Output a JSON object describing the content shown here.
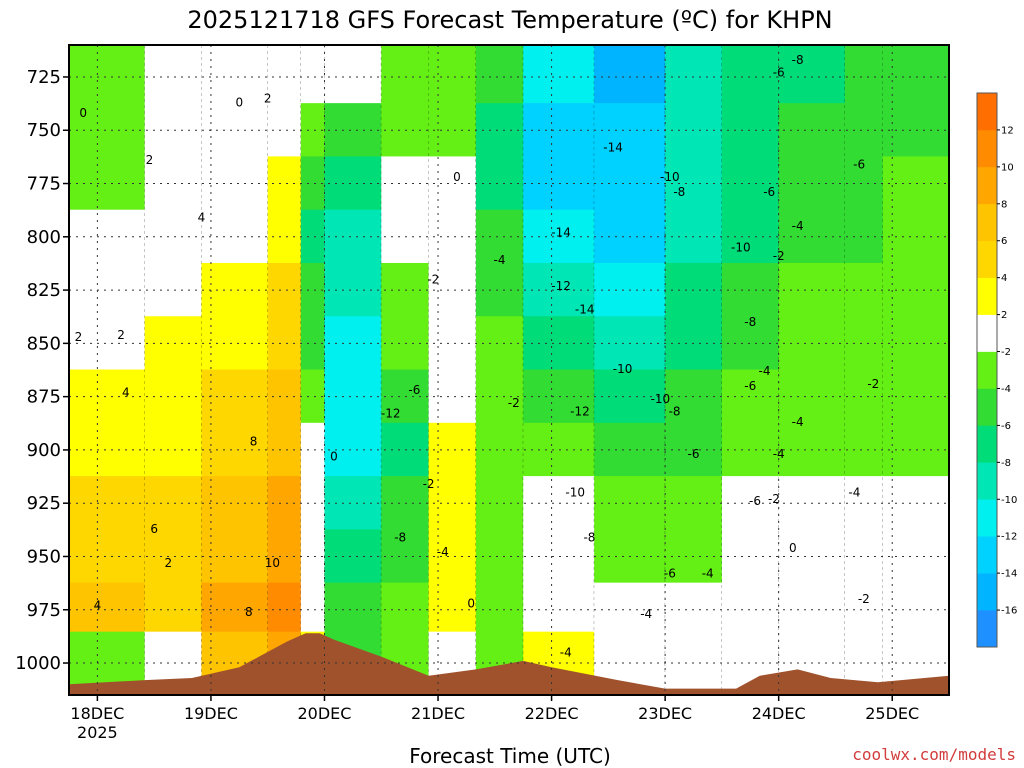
{
  "chart_data": {
    "type": "heatmap",
    "title": "2025121718 GFS Forecast Temperature (ºC) for KHPN",
    "xlabel": "Forecast Time (UTC)",
    "ylabel": "",
    "credit": "coolwx.com/models",
    "x_range_hours": [
      -6,
      180
    ],
    "x_ticks": [
      {
        "label": "18DEC",
        "sublabel": "2025",
        "hour": 0
      },
      {
        "label": "19DEC",
        "sublabel": "",
        "hour": 24
      },
      {
        "label": "20DEC",
        "sublabel": "",
        "hour": 48
      },
      {
        "label": "21DEC",
        "sublabel": "",
        "hour": 72
      },
      {
        "label": "22DEC",
        "sublabel": "",
        "hour": 96
      },
      {
        "label": "23DEC",
        "sublabel": "",
        "hour": 120
      },
      {
        "label": "24DEC",
        "sublabel": "",
        "hour": 144
      },
      {
        "label": "25DEC",
        "sublabel": "",
        "hour": 168
      }
    ],
    "y_axis": {
      "unit": "hPa",
      "range": [
        1015,
        710
      ],
      "ticks": [
        725,
        750,
        775,
        800,
        825,
        850,
        875,
        900,
        925,
        950,
        975,
        1000
      ]
    },
    "colorbar": {
      "levels": [
        -18,
        -16,
        -14,
        -12,
        -10,
        -8,
        -6,
        -4,
        -2,
        2,
        4,
        6,
        8,
        10,
        12,
        14
      ],
      "labels": [
        "-16",
        "-14",
        "-12",
        "-10",
        "-8",
        "-6",
        "-4",
        "-2",
        "2",
        "4",
        "6",
        "8",
        "10",
        "12"
      ],
      "colors": [
        "#1e90ff",
        "#00b4ff",
        "#00d2ff",
        "#00f0f0",
        "#00e6b4",
        "#00dc78",
        "#32dc32",
        "#64f014",
        "#ffffff",
        "#ffff00",
        "#ffd700",
        "#ffc400",
        "#ffa600",
        "#ff8c00",
        "#ff6e00"
      ]
    },
    "bands": [
      {
        "t0": -6,
        "t1": 10,
        "temps": [
          -4,
          6,
          5,
          4,
          3,
          2,
          1,
          0,
          -2,
          -3,
          -4,
          -4
        ]
      },
      {
        "t0": 10,
        "t1": 22,
        "temps": [
          -1,
          5,
          4,
          4,
          3,
          3,
          2,
          1,
          0,
          0,
          -1,
          0
        ]
      },
      {
        "t0": 22,
        "t1": 36,
        "temps": [
          7,
          8,
          7,
          6,
          5,
          4,
          3,
          2,
          1,
          0,
          -1,
          0
        ]
      },
      {
        "t0": 36,
        "t1": 43,
        "temps": [
          9,
          10,
          9,
          8,
          7,
          6,
          5,
          4,
          3,
          2,
          1,
          0
        ]
      },
      {
        "t0": 43,
        "t1": 48,
        "temps": [
          2,
          1,
          1,
          0,
          -2,
          -4,
          -5,
          -6,
          -7,
          -6,
          -4,
          -1
        ]
      },
      {
        "t0": 48,
        "t1": 60,
        "temps": [
          -6,
          -6,
          -8,
          -10,
          -12,
          -12,
          -12,
          -10,
          -9,
          -8,
          -5,
          -2
        ]
      },
      {
        "t0": 60,
        "t1": 70,
        "temps": [
          -4,
          -4,
          -5,
          -6,
          -7,
          -5,
          -4,
          -3,
          -2,
          -2,
          -3,
          -4
        ]
      },
      {
        "t0": 70,
        "t1": 80,
        "temps": [
          0,
          2,
          3,
          3,
          2,
          1,
          0,
          0,
          -1,
          -2,
          -4,
          -4
        ]
      },
      {
        "t0": 80,
        "t1": 90,
        "temps": [
          -3,
          -3,
          -3,
          -4,
          -4,
          -4,
          -4,
          -5,
          -6,
          -7,
          -8,
          -6
        ]
      },
      {
        "t0": 90,
        "t1": 105,
        "temps": [
          2,
          1,
          -1,
          -2,
          -4,
          -6,
          -8,
          -10,
          -12,
          -13,
          -14,
          -12
        ]
      },
      {
        "t0": 105,
        "t1": 120,
        "temps": [
          -2,
          -2,
          -3,
          -4,
          -6,
          -8,
          -10,
          -12,
          -13,
          -14,
          -14,
          -15
        ]
      },
      {
        "t0": 120,
        "t1": 132,
        "temps": [
          -2,
          -2,
          -3,
          -4,
          -5,
          -6,
          -7,
          -8,
          -9,
          -10,
          -10,
          -10
        ]
      },
      {
        "t0": 132,
        "t1": 144,
        "temps": [
          1,
          0,
          -1,
          -2,
          -3,
          -4,
          -5,
          -6,
          -7,
          -8,
          -8,
          -8
        ]
      },
      {
        "t0": 144,
        "t1": 158,
        "temps": [
          0,
          0,
          -1,
          -2,
          -3,
          -4,
          -4,
          -4,
          -5,
          -6,
          -6,
          -7
        ]
      },
      {
        "t0": 158,
        "t1": 166,
        "temps": [
          -1,
          -1,
          -1,
          -2,
          -3,
          -3,
          -4,
          -4,
          -5,
          -6,
          -6,
          -6
        ]
      },
      {
        "t0": 166,
        "t1": 180,
        "temps": [
          -2,
          -2,
          -2,
          -2,
          -3,
          -3,
          -3,
          -3,
          -3,
          -4,
          -5,
          -5
        ]
      }
    ],
    "band_pressure_bounds": [
      1015,
      985,
      962,
      937,
      912,
      887,
      862,
      837,
      812,
      787,
      762,
      737,
      710
    ],
    "terrain_hpa": [
      {
        "t": -6,
        "p": 1010
      },
      {
        "t": 10,
        "p": 1008
      },
      {
        "t": 20,
        "p": 1007
      },
      {
        "t": 30,
        "p": 1002
      },
      {
        "t": 40,
        "p": 990
      },
      {
        "t": 44,
        "p": 986
      },
      {
        "t": 47,
        "p": 986
      },
      {
        "t": 50,
        "p": 989
      },
      {
        "t": 60,
        "p": 997
      },
      {
        "t": 70,
        "p": 1006
      },
      {
        "t": 80,
        "p": 1003
      },
      {
        "t": 90,
        "p": 999
      },
      {
        "t": 96,
        "p": 1002
      },
      {
        "t": 110,
        "p": 1008
      },
      {
        "t": 120,
        "p": 1012
      },
      {
        "t": 135,
        "p": 1012
      },
      {
        "t": 140,
        "p": 1006
      },
      {
        "t": 148,
        "p": 1003
      },
      {
        "t": 155,
        "p": 1007
      },
      {
        "t": 165,
        "p": 1009
      },
      {
        "t": 180,
        "p": 1006
      }
    ],
    "annotations": [
      {
        "text": "0",
        "t": -3,
        "p": 742
      },
      {
        "text": "0",
        "t": 30,
        "p": 737
      },
      {
        "text": "2",
        "t": 36,
        "p": 735
      },
      {
        "text": "2",
        "t": 11,
        "p": 764
      },
      {
        "text": "4",
        "t": 22,
        "p": 791
      },
      {
        "text": "2",
        "t": 5,
        "p": 846
      },
      {
        "text": "2",
        "t": -4,
        "p": 847
      },
      {
        "text": "4",
        "t": 6,
        "p": 873
      },
      {
        "text": "6",
        "t": 12,
        "p": 937
      },
      {
        "text": "2",
        "t": 15,
        "p": 953
      },
      {
        "text": "4",
        "t": 0,
        "p": 973
      },
      {
        "text": "8",
        "t": 33,
        "p": 896
      },
      {
        "text": "10",
        "t": 37,
        "p": 953
      },
      {
        "text": "8",
        "t": 32,
        "p": 976
      },
      {
        "text": "0",
        "t": 50,
        "p": 903
      },
      {
        "text": "0",
        "t": 76,
        "p": 772
      },
      {
        "text": "-2",
        "t": 71,
        "p": 820
      },
      {
        "text": "-4",
        "t": 85,
        "p": 811
      },
      {
        "text": "-12",
        "t": 62,
        "p": 883
      },
      {
        "text": "-6",
        "t": 67,
        "p": 872
      },
      {
        "text": "-2",
        "t": 70,
        "p": 916
      },
      {
        "text": "-8",
        "t": 64,
        "p": 941
      },
      {
        "text": "-4",
        "t": 73,
        "p": 948
      },
      {
        "text": "-2",
        "t": 88,
        "p": 878
      },
      {
        "text": "0",
        "t": 79,
        "p": 972
      },
      {
        "text": "-4",
        "t": 99,
        "p": 995
      },
      {
        "text": "-14",
        "t": 109,
        "p": 758
      },
      {
        "text": "-14",
        "t": 98,
        "p": 798
      },
      {
        "text": "-12",
        "t": 98,
        "p": 823
      },
      {
        "text": "-14",
        "t": 103,
        "p": 834
      },
      {
        "text": "-10",
        "t": 111,
        "p": 862
      },
      {
        "text": "-12",
        "t": 102,
        "p": 882
      },
      {
        "text": "-10",
        "t": 119,
        "p": 876
      },
      {
        "text": "-8",
        "t": 122,
        "p": 882
      },
      {
        "text": "-10",
        "t": 101,
        "p": 920
      },
      {
        "text": "-8",
        "t": 104,
        "p": 941
      },
      {
        "text": "-6",
        "t": 126,
        "p": 902
      },
      {
        "text": "-6",
        "t": 121,
        "p": 958
      },
      {
        "text": "-4",
        "t": 116,
        "p": 977
      },
      {
        "text": "-4",
        "t": 129,
        "p": 958
      },
      {
        "text": "-10",
        "t": 121,
        "p": 772
      },
      {
        "text": "-8",
        "t": 123,
        "p": 779
      },
      {
        "text": "-6",
        "t": 144,
        "p": 723
      },
      {
        "text": "-8",
        "t": 148,
        "p": 717
      },
      {
        "text": "-6",
        "t": 142,
        "p": 779
      },
      {
        "text": "-6",
        "t": 161,
        "p": 766
      },
      {
        "text": "-10",
        "t": 136,
        "p": 805
      },
      {
        "text": "-8",
        "t": 138,
        "p": 840
      },
      {
        "text": "-4",
        "t": 141,
        "p": 863
      },
      {
        "text": "-6",
        "t": 138,
        "p": 870
      },
      {
        "text": "-4",
        "t": 144,
        "p": 902
      },
      {
        "text": "-6",
        "t": 139,
        "p": 924
      },
      {
        "text": "-2",
        "t": 143,
        "p": 923
      },
      {
        "text": "-4",
        "t": 148,
        "p": 795
      },
      {
        "text": "-2",
        "t": 144,
        "p": 809
      },
      {
        "text": "-4",
        "t": 148,
        "p": 887
      },
      {
        "text": "0",
        "t": 147,
        "p": 946
      },
      {
        "text": "-4",
        "t": 160,
        "p": 920
      },
      {
        "text": "-2",
        "t": 162,
        "p": 970
      },
      {
        "text": "-2",
        "t": 164,
        "p": 869
      }
    ]
  }
}
